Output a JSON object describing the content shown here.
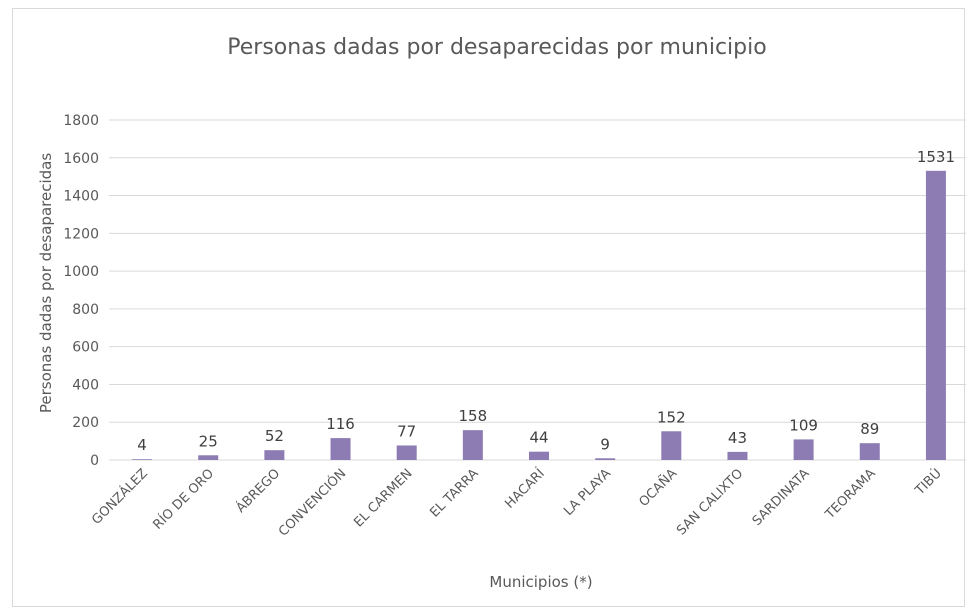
{
  "chart_data": {
    "type": "bar",
    "title": "Personas dadas por desaparecidas por municipio",
    "xlabel": "Municipios (*)",
    "ylabel": "Personas dadas por desaparecidas",
    "categories": [
      "GONZÁLEZ",
      "RÍO DE ORO",
      "ÁBREGO",
      "CONVENCIÓN",
      "EL CARMEN",
      "EL TARRA",
      "HACARÍ",
      "LA PLAYA",
      "OCAÑA",
      "SAN CALIXTO",
      "SARDINATA",
      "TEORAMA",
      "TIBÚ"
    ],
    "values": [
      4,
      25,
      52,
      116,
      77,
      158,
      44,
      9,
      152,
      43,
      109,
      89,
      1531
    ],
    "ylim": [
      0,
      1800
    ],
    "yticks": [
      0,
      200,
      400,
      600,
      800,
      1000,
      1200,
      1400,
      1600,
      1800
    ],
    "grid": true,
    "data_labels": true,
    "bar_color": "#8d7cb3",
    "grid_color": "#d9d9d9",
    "text_color": "#595959"
  }
}
